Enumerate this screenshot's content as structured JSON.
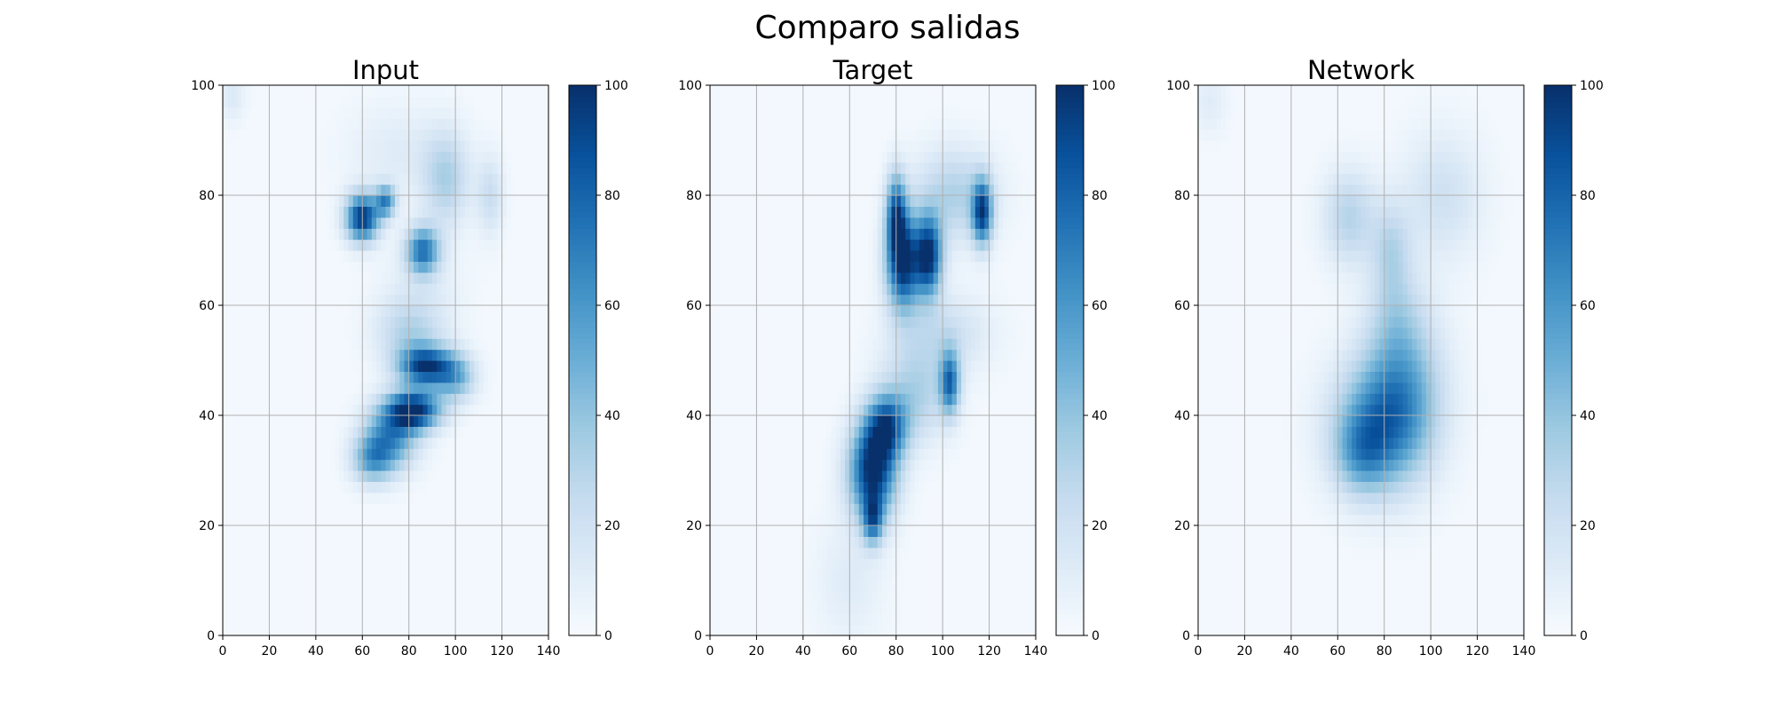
{
  "figure": {
    "title": "Comparo salidas"
  },
  "colormap": {
    "name": "Blues",
    "low": "#f7fbff",
    "high": "#08306b"
  },
  "chart_data": [
    {
      "type": "heatmap",
      "title": "Input",
      "xlim": [
        0,
        140
      ],
      "ylim": [
        0,
        100
      ],
      "xticks": [
        0,
        20,
        40,
        60,
        80,
        100,
        120,
        140
      ],
      "yticks": [
        0,
        20,
        40,
        60,
        80,
        100
      ],
      "grid": true,
      "colorbar": {
        "range": [
          0,
          100
        ],
        "ticks": [
          0,
          20,
          40,
          60,
          80,
          100
        ]
      },
      "blobs": [
        {
          "x": 60,
          "y": 76,
          "sx": 5,
          "sy": 3,
          "v": 95
        },
        {
          "x": 70,
          "y": 79,
          "sx": 3,
          "sy": 2,
          "v": 60
        },
        {
          "x": 86,
          "y": 70,
          "sx": 5,
          "sy": 3,
          "v": 70
        },
        {
          "x": 96,
          "y": 83,
          "sx": 7,
          "sy": 6,
          "v": 30
        },
        {
          "x": 115,
          "y": 80,
          "sx": 4,
          "sy": 5,
          "v": 20
        },
        {
          "x": 87,
          "y": 49,
          "sx": 8,
          "sy": 2.5,
          "v": 90
        },
        {
          "x": 100,
          "y": 47,
          "sx": 6,
          "sy": 3,
          "v": 45
        },
        {
          "x": 82,
          "y": 41,
          "sx": 8,
          "sy": 2.5,
          "v": 100
        },
        {
          "x": 72,
          "y": 36,
          "sx": 8,
          "sy": 4,
          "v": 60
        },
        {
          "x": 64,
          "y": 32,
          "sx": 6,
          "sy": 3,
          "v": 45
        },
        {
          "x": 80,
          "y": 55,
          "sx": 10,
          "sy": 4,
          "v": 25
        },
        {
          "x": 85,
          "y": 62,
          "sx": 12,
          "sy": 6,
          "v": 10
        },
        {
          "x": 75,
          "y": 88,
          "sx": 15,
          "sy": 6,
          "v": 10
        },
        {
          "x": 4,
          "y": 98,
          "sx": 4,
          "sy": 3,
          "v": 12
        }
      ]
    },
    {
      "type": "heatmap",
      "title": "Target",
      "xlim": [
        0,
        140
      ],
      "ylim": [
        0,
        100
      ],
      "xticks": [
        0,
        20,
        40,
        60,
        80,
        100,
        120,
        140
      ],
      "yticks": [
        0,
        20,
        40,
        60,
        80,
        100
      ],
      "grid": true,
      "colorbar": {
        "range": [
          0,
          100
        ],
        "ticks": [
          0,
          20,
          40,
          60,
          80,
          100
        ]
      },
      "blobs": [
        {
          "x": 83,
          "y": 68,
          "sx": 5,
          "sy": 6,
          "v": 100
        },
        {
          "x": 94,
          "y": 69,
          "sx": 4,
          "sy": 5,
          "v": 95
        },
        {
          "x": 80,
          "y": 77,
          "sx": 3,
          "sy": 5,
          "v": 70
        },
        {
          "x": 117,
          "y": 77,
          "sx": 3,
          "sy": 4,
          "v": 85
        },
        {
          "x": 105,
          "y": 80,
          "sx": 12,
          "sy": 6,
          "v": 30
        },
        {
          "x": 103,
          "y": 46,
          "sx": 3,
          "sy": 4,
          "v": 70
        },
        {
          "x": 70,
          "y": 30,
          "sx": 7,
          "sy": 6,
          "v": 100
        },
        {
          "x": 76,
          "y": 38,
          "sx": 6,
          "sy": 4,
          "v": 70
        },
        {
          "x": 70,
          "y": 21,
          "sx": 3,
          "sy": 3,
          "v": 60
        },
        {
          "x": 88,
          "y": 44,
          "sx": 10,
          "sy": 6,
          "v": 30
        },
        {
          "x": 100,
          "y": 55,
          "sx": 14,
          "sy": 5,
          "v": 20
        },
        {
          "x": 60,
          "y": 10,
          "sx": 10,
          "sy": 8,
          "v": 10
        }
      ]
    },
    {
      "type": "heatmap",
      "title": "Network",
      "xlim": [
        0,
        140
      ],
      "ylim": [
        0,
        100
      ],
      "xticks": [
        0,
        20,
        40,
        60,
        80,
        100,
        120,
        140
      ],
      "yticks": [
        0,
        20,
        40,
        60,
        80,
        100
      ],
      "grid": true,
      "colorbar": {
        "range": [
          0,
          100
        ],
        "ticks": [
          0,
          20,
          40,
          60,
          80,
          100
        ]
      },
      "blobs": [
        {
          "x": 78,
          "y": 38,
          "sx": 14,
          "sy": 8,
          "v": 55
        },
        {
          "x": 88,
          "y": 46,
          "sx": 12,
          "sy": 10,
          "v": 40
        },
        {
          "x": 70,
          "y": 33,
          "sx": 8,
          "sy": 5,
          "v": 30
        },
        {
          "x": 65,
          "y": 76,
          "sx": 8,
          "sy": 6,
          "v": 28
        },
        {
          "x": 83,
          "y": 70,
          "sx": 6,
          "sy": 6,
          "v": 25
        },
        {
          "x": 105,
          "y": 80,
          "sx": 12,
          "sy": 8,
          "v": 18
        },
        {
          "x": 85,
          "y": 58,
          "sx": 8,
          "sy": 6,
          "v": 15
        },
        {
          "x": 5,
          "y": 97,
          "sx": 5,
          "sy": 4,
          "v": 10
        }
      ]
    }
  ]
}
